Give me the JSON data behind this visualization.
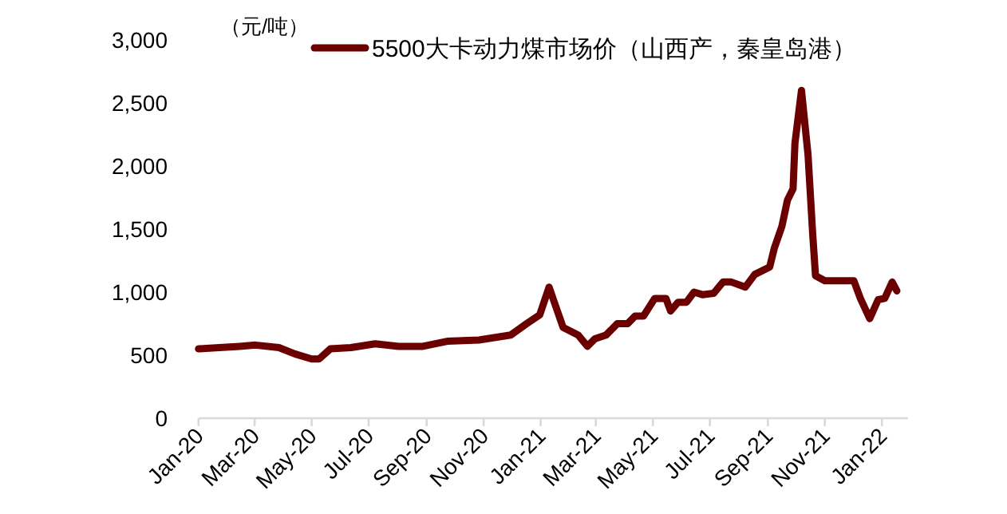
{
  "chart_data": {
    "type": "line",
    "ylabel": "（元/吨）",
    "legend": "top",
    "line_style": "solid",
    "marker": "none",
    "grid": false,
    "xlim": [
      "2020-01-01",
      "2022-01-29"
    ],
    "xticks": [
      {
        "value": "2020-01-01",
        "label": "Jan-20"
      },
      {
        "value": "2020-03-01",
        "label": "Mar-20"
      },
      {
        "value": "2020-05-01",
        "label": "May-20"
      },
      {
        "value": "2020-07-01",
        "label": "Jul-20"
      },
      {
        "value": "2020-09-01",
        "label": "Sep-20"
      },
      {
        "value": "2020-11-01",
        "label": "Nov-20"
      },
      {
        "value": "2021-01-01",
        "label": "Jan-21"
      },
      {
        "value": "2021-03-01",
        "label": "Mar-21"
      },
      {
        "value": "2021-05-01",
        "label": "May-21"
      },
      {
        "value": "2021-07-01",
        "label": "Jul-21"
      },
      {
        "value": "2021-09-01",
        "label": "Sep-21"
      },
      {
        "value": "2021-11-01",
        "label": "Nov-21"
      },
      {
        "value": "2022-01-01",
        "label": "Jan-22"
      }
    ],
    "ylim": [
      0,
      3000
    ],
    "yticks": [
      {
        "value": 0,
        "label": "0"
      },
      {
        "value": 500,
        "label": "500"
      },
      {
        "value": 1000,
        "label": "1,000"
      },
      {
        "value": 1500,
        "label": "1,500"
      },
      {
        "value": 2000,
        "label": "2,000"
      },
      {
        "value": 2500,
        "label": "2,500"
      },
      {
        "value": 3000,
        "label": "3,000"
      }
    ],
    "series": [
      {
        "name": "5500大卡动力煤市场价（山西产，秦皇岛港）",
        "color": "#6b0000",
        "x": [
          "2020-01-01",
          "2020-02-14",
          "2020-03-02",
          "2020-03-27",
          "2020-04-13",
          "2020-05-01",
          "2020-05-09",
          "2020-05-21",
          "2020-06-12",
          "2020-07-08",
          "2020-08-02",
          "2020-08-28",
          "2020-09-23",
          "2020-10-27",
          "2020-11-30",
          "2020-12-17",
          "2020-12-31",
          "2021-01-10",
          "2021-01-17",
          "2021-01-25",
          "2021-02-10",
          "2021-02-20",
          "2021-02-28",
          "2021-03-12",
          "2021-03-24",
          "2021-04-04",
          "2021-04-12",
          "2021-04-21",
          "2021-05-03",
          "2021-05-15",
          "2021-05-20",
          "2021-05-28",
          "2021-06-06",
          "2021-06-14",
          "2021-06-23",
          "2021-07-05",
          "2021-07-15",
          "2021-07-24",
          "2021-08-08",
          "2021-08-18",
          "2021-09-03",
          "2021-09-08",
          "2021-09-16",
          "2021-09-22",
          "2021-09-28",
          "2021-09-30",
          "2021-10-07",
          "2021-10-14",
          "2021-10-19",
          "2021-10-22",
          "2021-11-01",
          "2021-12-02",
          "2021-12-09",
          "2021-12-19",
          "2021-12-28",
          "2022-01-04",
          "2022-01-12",
          "2022-01-17"
        ],
        "values": [
          550,
          570,
          580,
          560,
          510,
          470,
          470,
          550,
          560,
          590,
          570,
          570,
          610,
          620,
          660,
          750,
          820,
          1040,
          890,
          720,
          660,
          570,
          630,
          660,
          750,
          750,
          810,
          810,
          950,
          950,
          850,
          920,
          920,
          1000,
          980,
          990,
          1080,
          1080,
          1040,
          1140,
          1200,
          1350,
          1520,
          1730,
          1820,
          2180,
          2600,
          2090,
          1460,
          1130,
          1090,
          1090,
          950,
          790,
          940,
          950,
          1080,
          1010
        ]
      }
    ]
  }
}
